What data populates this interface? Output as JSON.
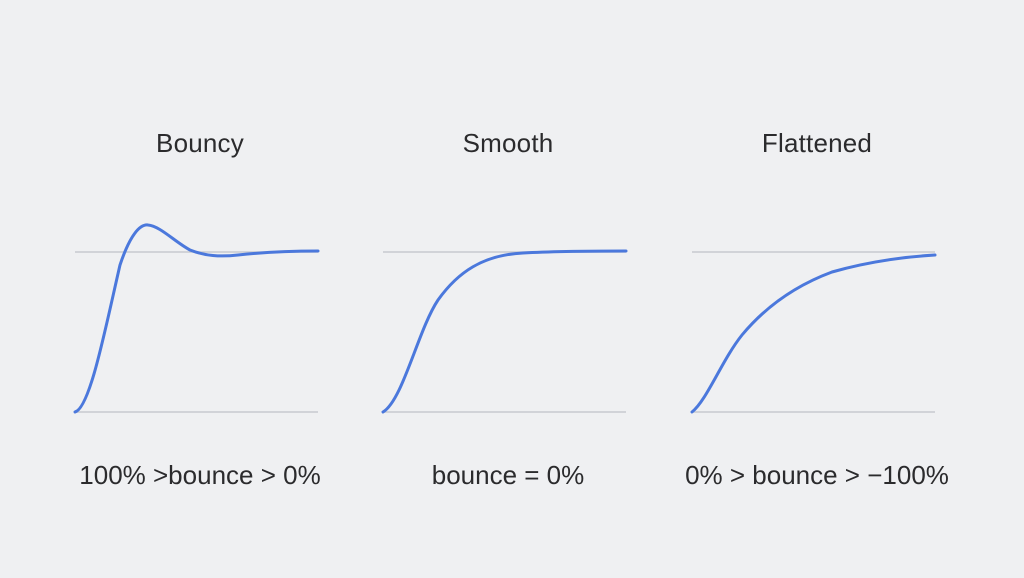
{
  "background_color": "#eff0f2",
  "curve_color": "#4b78dc",
  "guide_color": "#c7c9cf",
  "panels": [
    {
      "title": "Bouncy",
      "caption": "100% >bounce > 0%"
    },
    {
      "title": "Smooth",
      "caption": "bounce = 0%"
    },
    {
      "title": "Flattened",
      "caption": "0% > bounce > −100%"
    }
  ]
}
